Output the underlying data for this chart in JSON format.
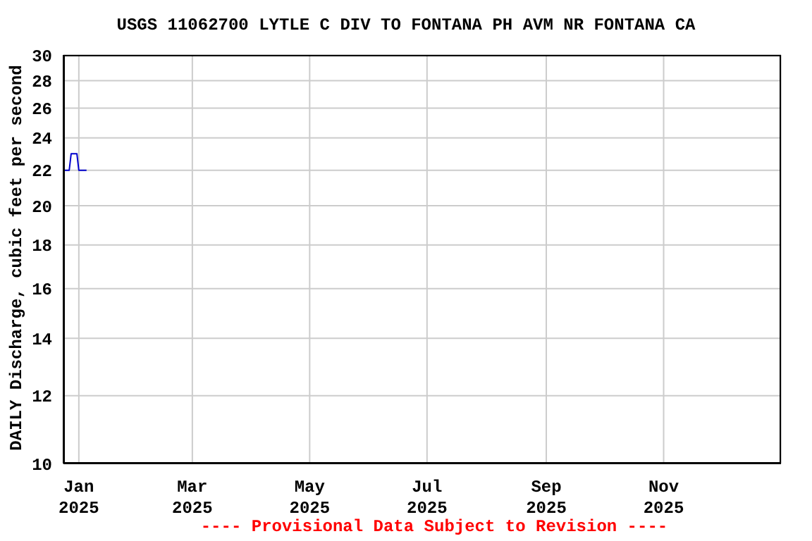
{
  "chart_data": {
    "type": "line",
    "title": "USGS 11062700 LYTLE C DIV TO FONTANA PH AVM NR FONTANA CA",
    "ylabel": "DAILY Discharge, cubic feet per second",
    "annotations": [
      "---- Provisional Data Subject to Revision ----"
    ],
    "x": [
      "2024-12-24",
      "2024-12-25",
      "2024-12-26",
      "2024-12-27",
      "2024-12-28",
      "2024-12-29",
      "2024-12-30",
      "2024-12-31",
      "2025-01-01",
      "2025-01-02",
      "2025-01-03",
      "2025-01-04",
      "2025-01-05"
    ],
    "series": [
      {
        "color": "#0000cc",
        "values": [
          22,
          22,
          22,
          22,
          23,
          23,
          23,
          23,
          22,
          22,
          22,
          22,
          22
        ]
      }
    ],
    "xlim": [
      "2024-12-24",
      "2026-01-01"
    ],
    "xticks": [
      {
        "value": "2025-01-01",
        "label": "Jan 2025"
      },
      {
        "value": "2025-03-01",
        "label": "Mar 2025"
      },
      {
        "value": "2025-05-01",
        "label": "May 2025"
      },
      {
        "value": "2025-07-01",
        "label": "Jul 2025"
      },
      {
        "value": "2025-09-01",
        "label": "Sep 2025"
      },
      {
        "value": "2025-11-01",
        "label": "Nov 2025"
      }
    ],
    "ylim": [
      10,
      30
    ],
    "yticks": [
      10,
      12,
      14,
      16,
      18,
      20,
      22,
      24,
      26,
      28,
      30
    ],
    "log": "y",
    "grid": true,
    "marker": "none",
    "line_style": "solid",
    "legend": false
  }
}
